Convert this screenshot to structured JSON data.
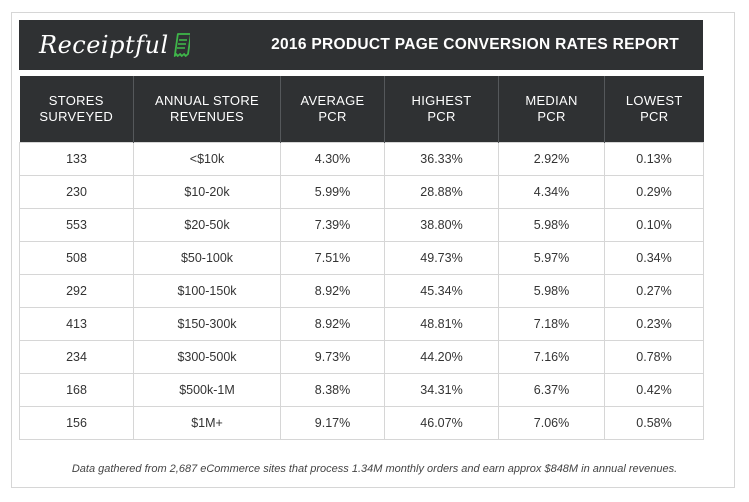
{
  "header": {
    "logo_text": "Receiptful",
    "title": "2016 PRODUCT PAGE CONVERSION RATES REPORT",
    "icon": "receipt-icon",
    "accent_color": "#3fb64a",
    "background_color": "#2f3133"
  },
  "table": {
    "columns": [
      [
        "STORES",
        "SURVEYED"
      ],
      [
        "ANNUAL STORE",
        "REVENUES"
      ],
      [
        "AVERAGE",
        "PCR"
      ],
      [
        "HIGHEST",
        "PCR"
      ],
      [
        "MEDIAN",
        "PCR"
      ],
      [
        "LOWEST",
        "PCR"
      ]
    ],
    "rows": [
      [
        "133",
        "<$10k",
        "4.30%",
        "36.33%",
        "2.92%",
        "0.13%"
      ],
      [
        "230",
        "$10-20k",
        "5.99%",
        "28.88%",
        "4.34%",
        "0.29%"
      ],
      [
        "553",
        "$20-50k",
        "7.39%",
        "38.80%",
        "5.98%",
        "0.10%"
      ],
      [
        "508",
        "$50-100k",
        "7.51%",
        "49.73%",
        "5.97%",
        "0.34%"
      ],
      [
        "292",
        "$100-150k",
        "8.92%",
        "45.34%",
        "5.98%",
        "0.27%"
      ],
      [
        "413",
        "$150-300k",
        "8.92%",
        "48.81%",
        "7.18%",
        "0.23%"
      ],
      [
        "234",
        "$300-500k",
        "9.73%",
        "44.20%",
        "7.16%",
        "0.78%"
      ],
      [
        "168",
        "$500k-1M",
        "8.38%",
        "34.31%",
        "6.37%",
        "0.42%"
      ],
      [
        "156",
        "$1M+",
        "9.17%",
        "46.07%",
        "7.06%",
        "0.58%"
      ]
    ]
  },
  "footnote": "Data gathered from 2,687 eCommerce sites that process 1.34M monthly orders and earn approx $848M in annual revenues."
}
